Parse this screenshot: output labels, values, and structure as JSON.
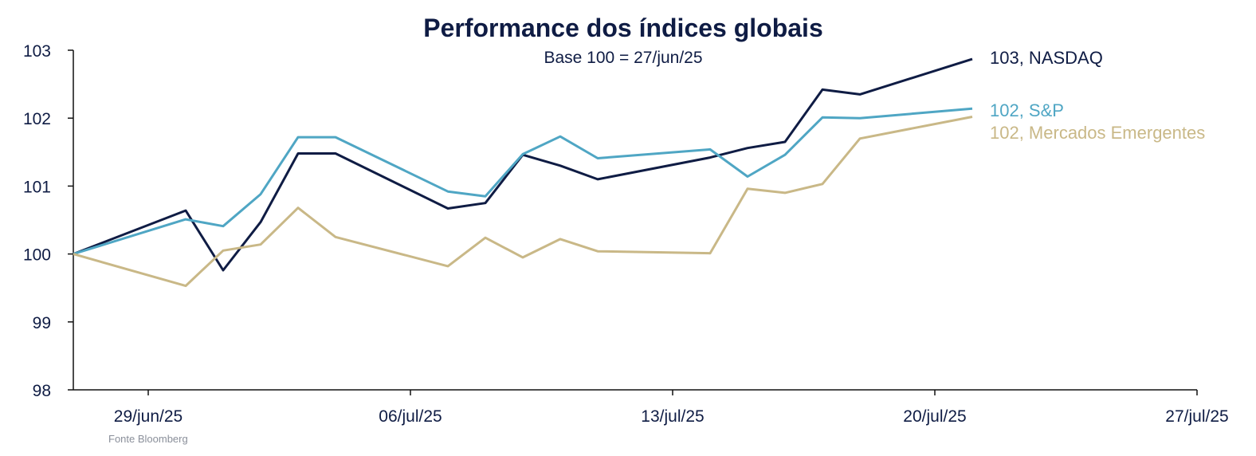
{
  "chart_data": {
    "type": "line",
    "title": "Performance dos índices globais",
    "subtitle": "Base 100 = 27/jun/25",
    "source": "Fonte Bloomberg",
    "x_start": "27/jun/25",
    "x_dates": [
      "27/jun/25",
      "30/jun/25",
      "01/jul/25",
      "02/jul/25",
      "03/jul/25",
      "04/jul/25",
      "07/jul/25",
      "08/jul/25",
      "09/jul/25",
      "10/jul/25",
      "11/jul/25",
      "14/jul/25",
      "15/jul/25",
      "16/jul/25",
      "17/jul/25",
      "18/jul/25",
      "21/jul/25"
    ],
    "xlim": [
      "27/jun/25",
      "27/jul/25"
    ],
    "ylim": [
      98,
      103
    ],
    "yticks": [
      98,
      99,
      100,
      101,
      102,
      103
    ],
    "yticks_labels": [
      "98",
      "99",
      "100",
      "101",
      "102",
      "103"
    ],
    "xticks": [
      "29/jun/25",
      "06/jul/25",
      "13/jul/25",
      "20/jul/25",
      "27/jul/25"
    ],
    "grid": false,
    "series": [
      {
        "name": "NASDAQ",
        "color": "#0f1c44",
        "end_label": "103, NASDAQ",
        "values": [
          100,
          100.64,
          99.76,
          100.47,
          101.48,
          101.48,
          100.67,
          100.75,
          101.46,
          101.3,
          101.1,
          101.42,
          101.56,
          101.65,
          102.42,
          102.35,
          102.87
        ]
      },
      {
        "name": "S&P",
        "color": "#4fa6c4",
        "end_label": "102, S&P",
        "values": [
          100,
          100.51,
          100.41,
          100.88,
          101.72,
          101.72,
          100.92,
          100.85,
          101.47,
          101.73,
          101.41,
          101.54,
          101.14,
          101.46,
          102.01,
          102.0,
          102.14
        ]
      },
      {
        "name": "Mercados Emergentes",
        "color": "#c9b887",
        "end_label": "102, Mercados Emergentes",
        "values": [
          100,
          99.53,
          100.05,
          100.14,
          100.68,
          100.25,
          99.82,
          100.24,
          99.95,
          100.22,
          100.04,
          100.01,
          100.96,
          100.9,
          101.03,
          101.7,
          102.02
        ]
      }
    ]
  }
}
